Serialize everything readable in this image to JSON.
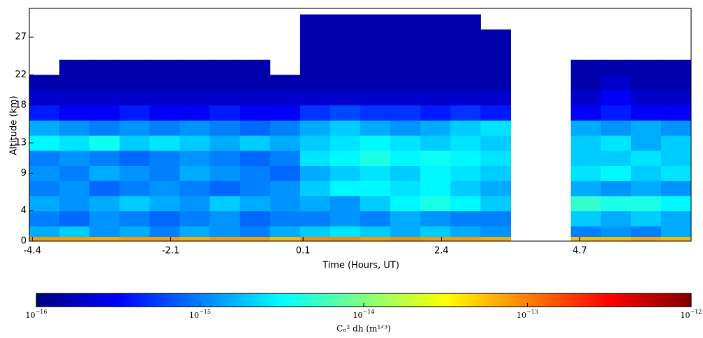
{
  "chart_data": {
    "type": "heatmap",
    "xlabel": "Time (Hours, UT)",
    "ylabel": "Altitude (km)",
    "xlim": [
      -4.45,
      6.55
    ],
    "xticks": [
      -4.4,
      -2.1,
      0.1,
      2.4,
      4.7
    ],
    "ylim": [
      0,
      30.8
    ],
    "yticks": [
      0,
      4,
      9,
      13,
      18,
      22,
      27
    ],
    "xbins": [
      -4.45,
      -3.95,
      -3.45,
      -2.95,
      -2.45,
      -1.95,
      -1.45,
      -0.95,
      -0.45,
      0.05,
      0.55,
      1.05,
      1.55,
      2.05,
      2.55,
      3.05,
      3.55,
      4.05,
      4.55,
      5.05,
      5.55,
      6.05,
      6.55
    ],
    "ybins": [
      0,
      0.6,
      2,
      4,
      6,
      8,
      10,
      12,
      14,
      16,
      18,
      20,
      22,
      24,
      26,
      28,
      30
    ],
    "values": [
      [
        8e-14,
        8e-14,
        7e-14,
        8e-14,
        8e-14,
        7e-14,
        8e-14,
        8e-14,
        6e-14,
        9e-14,
        9e-14,
        8e-14,
        9e-14,
        8e-14,
        8e-14,
        7e-14,
        null,
        null,
        6e-14,
        6e-14,
        7e-14,
        6e-14
      ],
      [
        1.5e-15,
        2e-15,
        1.2e-15,
        1.5e-15,
        1e-15,
        1.5e-15,
        1.2e-15,
        1e-15,
        1.5e-15,
        2e-15,
        2.5e-15,
        2e-15,
        1.5e-15,
        2e-15,
        1.5e-15,
        1.2e-15,
        null,
        null,
        1e-15,
        1.2e-15,
        1e-15,
        1.5e-15
      ],
      [
        1e-15,
        8e-16,
        1.2e-15,
        1e-15,
        8e-16,
        1e-15,
        1.2e-15,
        8e-16,
        1e-15,
        1e-15,
        1.2e-15,
        1e-15,
        1.5e-15,
        1.2e-15,
        1e-15,
        1e-15,
        null,
        null,
        2e-15,
        1.5e-15,
        2e-15,
        1.5e-15
      ],
      [
        1.5e-15,
        1.2e-15,
        1.5e-15,
        2e-15,
        1.5e-15,
        1.2e-15,
        2e-15,
        1.5e-15,
        1.2e-15,
        1.5e-15,
        1.2e-15,
        2e-15,
        3e-15,
        4e-15,
        3e-15,
        2e-15,
        null,
        null,
        5e-15,
        4e-15,
        4e-15,
        3e-15
      ],
      [
        1e-15,
        1.2e-15,
        8e-16,
        1e-15,
        1.2e-15,
        1e-15,
        8e-16,
        1e-15,
        1.2e-15,
        2e-15,
        3e-15,
        3e-15,
        2.5e-15,
        3e-15,
        2e-15,
        1.5e-15,
        null,
        null,
        1.5e-15,
        1.2e-15,
        1.5e-15,
        1.2e-15
      ],
      [
        1.2e-15,
        1e-15,
        1.5e-15,
        1.2e-15,
        1e-15,
        1.5e-15,
        1.2e-15,
        1e-15,
        8e-16,
        1.5e-15,
        2e-15,
        2.5e-15,
        2e-15,
        3e-15,
        2.5e-15,
        2e-15,
        null,
        null,
        2.5e-15,
        3e-15,
        2e-15,
        2.5e-15
      ],
      [
        1e-15,
        1.2e-15,
        1e-15,
        8e-16,
        1e-15,
        1.2e-15,
        1e-15,
        8e-16,
        1e-15,
        2.5e-15,
        3e-15,
        4e-15,
        3e-15,
        3.5e-15,
        3e-15,
        2.5e-15,
        null,
        null,
        2e-15,
        2e-15,
        2.5e-15,
        2e-15
      ],
      [
        3e-15,
        2.5e-15,
        3.5e-15,
        2e-15,
        2.5e-15,
        2e-15,
        1.5e-15,
        2e-15,
        1.5e-15,
        2e-15,
        2.5e-15,
        3e-15,
        2.5e-15,
        2e-15,
        2.5e-15,
        2e-15,
        null,
        null,
        2e-15,
        2.5e-15,
        1.5e-15,
        2e-15
      ],
      [
        1.5e-15,
        1.2e-15,
        1e-15,
        1.2e-15,
        1e-15,
        1.2e-15,
        1e-15,
        8e-16,
        1e-15,
        1.5e-15,
        2e-15,
        1.5e-15,
        1.2e-15,
        1.5e-15,
        2e-15,
        2.5e-15,
        null,
        null,
        1.5e-15,
        1.2e-15,
        1.5e-15,
        1.2e-15
      ],
      [
        4e-16,
        3e-16,
        3e-16,
        4e-16,
        3e-16,
        3e-16,
        4e-16,
        3e-16,
        3e-16,
        5e-16,
        6e-16,
        5e-16,
        5e-16,
        4e-16,
        5e-16,
        4e-16,
        null,
        null,
        3e-16,
        4e-16,
        3e-16,
        3e-16
      ],
      [
        2e-16,
        2e-16,
        2e-16,
        2e-16,
        2e-16,
        2e-16,
        2e-16,
        2e-16,
        2e-16,
        2e-16,
        2e-16,
        2e-16,
        2e-16,
        2e-16,
        2e-16,
        2e-16,
        null,
        null,
        2e-16,
        3e-16,
        2e-16,
        2e-16
      ],
      [
        1.5e-16,
        1.5e-16,
        1.5e-16,
        1.5e-16,
        1.5e-16,
        1.5e-16,
        1.5e-16,
        1.5e-16,
        1.5e-16,
        1.5e-16,
        1.5e-16,
        1.5e-16,
        1.5e-16,
        1.5e-16,
        1.5e-16,
        1.5e-16,
        null,
        null,
        1.5e-16,
        2e-16,
        1.5e-16,
        1.5e-16
      ],
      [
        null,
        1.5e-16,
        1.5e-16,
        1.5e-16,
        1.5e-16,
        1.5e-16,
        1.5e-16,
        1.5e-16,
        null,
        1.5e-16,
        1.5e-16,
        1.5e-16,
        1.5e-16,
        1.5e-16,
        1.5e-16,
        1.5e-16,
        null,
        null,
        1.5e-16,
        1.5e-16,
        1.5e-16,
        1.5e-16
      ],
      [
        null,
        null,
        null,
        null,
        null,
        null,
        null,
        null,
        null,
        1.5e-16,
        1.5e-16,
        1.5e-16,
        1.5e-16,
        1.5e-16,
        1.5e-16,
        1.5e-16,
        null,
        null,
        null,
        null,
        null,
        null
      ],
      [
        null,
        null,
        null,
        null,
        null,
        null,
        null,
        null,
        null,
        1.5e-16,
        1.5e-16,
        1.5e-16,
        1.5e-16,
        1.5e-16,
        1.5e-16,
        1.5e-16,
        null,
        null,
        null,
        null,
        null,
        null
      ],
      [
        null,
        null,
        null,
        null,
        null,
        null,
        null,
        null,
        null,
        1.5e-16,
        1.5e-16,
        1.5e-16,
        1.5e-16,
        1.5e-16,
        1.5e-16,
        null,
        null,
        null,
        null,
        null,
        null,
        null
      ]
    ],
    "colorbar": {
      "scale": "log",
      "colormap": "jet",
      "lim": [
        1e-16,
        1e-12
      ],
      "label": "Cₙ² dh (m¹ᐟ³)",
      "ticks": [
        {
          "value": 1e-16,
          "label": {
            "base": "10",
            "exp": "−16"
          }
        },
        {
          "value": 1e-15,
          "label": {
            "base": "10",
            "exp": "−15"
          }
        },
        {
          "value": 1e-14,
          "label": {
            "base": "10",
            "exp": "−14"
          }
        },
        {
          "value": 1e-13,
          "label": {
            "base": "10",
            "exp": "−13"
          }
        },
        {
          "value": 1e-12,
          "label": {
            "base": "10",
            "exp": "−12"
          }
        }
      ]
    }
  }
}
